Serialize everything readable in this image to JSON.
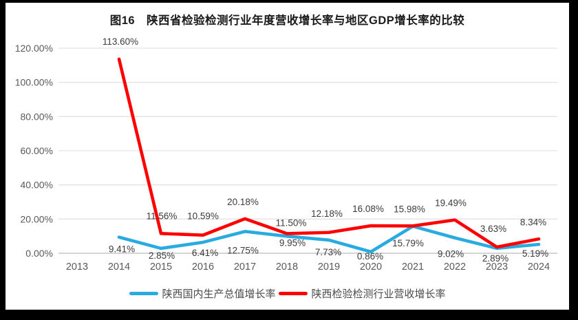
{
  "title": "图16　陕西省检验检测行业年度营收增长率与地区GDP增长率的比较",
  "colors": {
    "gdp_line": "#29ABE2",
    "revenue_line": "#FE0000",
    "gridline": "#DDDDDD",
    "axis_line": "#C6C6C6",
    "tick_text": "#595959",
    "label_text": "#3b3b3b"
  },
  "chart_data": {
    "type": "line",
    "title": "图16　陕西省检验检测行业年度营收增长率与地区GDP增长率的比较",
    "categories": [
      "2013",
      "2014",
      "2015",
      "2016",
      "2017",
      "2018",
      "2019",
      "2020",
      "2021",
      "2022",
      "2023",
      "2024"
    ],
    "series": [
      {
        "name": "陕西国内生产总值增长率",
        "color": "#29ABE2",
        "values": [
          null,
          9.41,
          2.85,
          6.41,
          12.75,
          9.95,
          7.73,
          0.86,
          15.79,
          9.02,
          2.89,
          5.19
        ]
      },
      {
        "name": "陕西检验检测行业营收增长率",
        "color": "#FE0000",
        "values": [
          null,
          113.6,
          11.56,
          10.59,
          20.18,
          11.5,
          12.18,
          16.08,
          15.98,
          19.49,
          3.63,
          8.34
        ]
      }
    ],
    "ylim": [
      0,
      120
    ],
    "ytick_step": 20,
    "ytick_labels": [
      "0.00%",
      "20.00%",
      "40.00%",
      "60.00%",
      "80.00%",
      "100.00%",
      "120.00%"
    ],
    "grid": true,
    "data_labels": true,
    "legend_position": "bottom"
  }
}
